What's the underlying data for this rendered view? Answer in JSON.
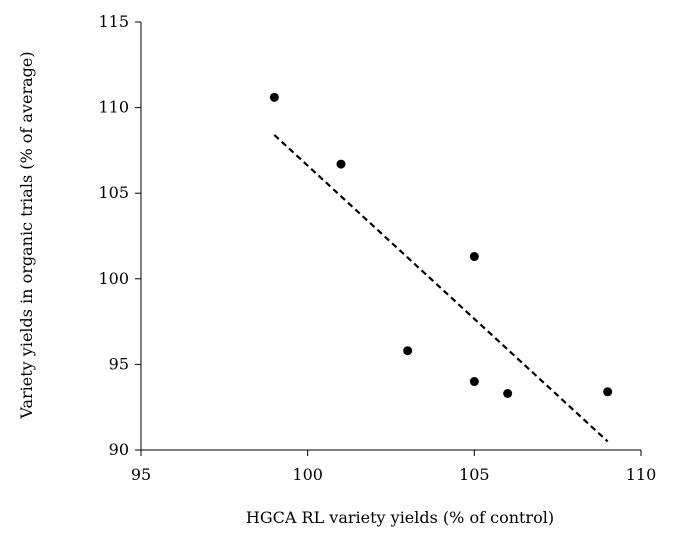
{
  "chart_data": {
    "type": "scatter",
    "title": "",
    "xlabel": "HGCA RL variety yields (% of control)",
    "ylabel": "Variety yields in organic trials (% of average)",
    "xlim": [
      95,
      110
    ],
    "ylim": [
      90,
      115
    ],
    "xticks": [
      95,
      100,
      105,
      110
    ],
    "yticks": [
      90,
      95,
      100,
      105,
      110,
      115
    ],
    "grid": false,
    "legend": "none",
    "series": [
      {
        "points": [
          {
            "x": 99,
            "y": 110.6
          },
          {
            "x": 101,
            "y": 106.7
          },
          {
            "x": 103,
            "y": 95.8
          },
          {
            "x": 105,
            "y": 101.3
          },
          {
            "x": 105,
            "y": 94.0
          },
          {
            "x": 106,
            "y": 93.3
          },
          {
            "x": 109,
            "y": 93.4
          }
        ],
        "color": "#000000"
      }
    ],
    "trendline": {
      "style": "dashed",
      "color": "#000000",
      "start": {
        "x": 99,
        "y": 108.4
      },
      "end": {
        "x": 109,
        "y": 90.5
      }
    }
  }
}
